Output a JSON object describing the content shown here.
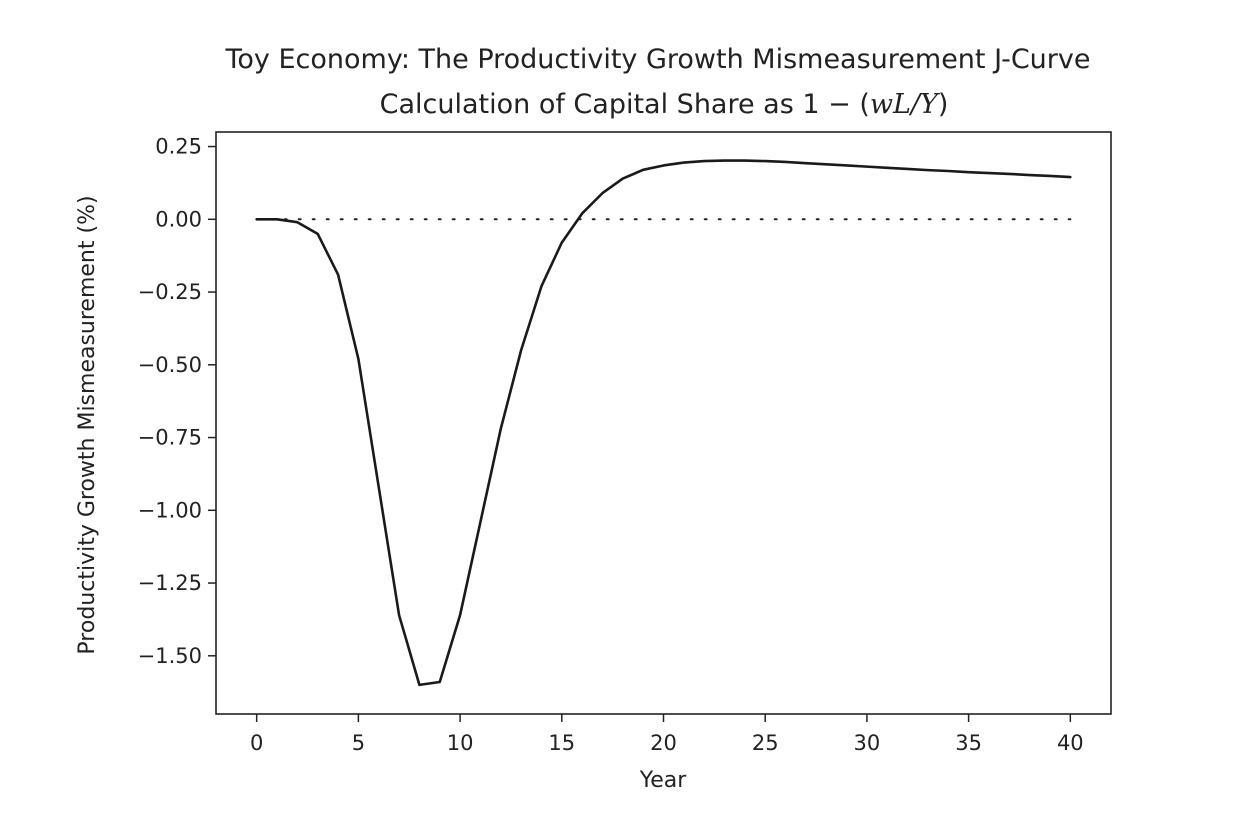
{
  "chart_data": {
    "type": "line",
    "title_line1": "Toy Economy: The Productivity Growth Mismeasurement J-Curve",
    "title_line2_prefix": "Calculation of Capital Share as 1 − (",
    "title_line2_math": "wL/Y",
    "title_line2_suffix": ")",
    "xlabel": "Year",
    "ylabel": "Productivity Growth Mismeasurement (%)",
    "xlim": [
      -2,
      42
    ],
    "ylim": [
      -1.7,
      0.3
    ],
    "x_ticks": [
      0,
      5,
      10,
      15,
      20,
      25,
      30,
      35,
      40
    ],
    "x_tick_labels": [
      "0",
      "5",
      "10",
      "15",
      "20",
      "25",
      "30",
      "35",
      "40"
    ],
    "y_ticks": [
      0.25,
      0.0,
      -0.25,
      -0.5,
      -0.75,
      -1.0,
      -1.25,
      -1.5
    ],
    "y_tick_labels": [
      "0.25",
      "0.00",
      "−0.25",
      "−0.50",
      "−0.75",
      "−1.00",
      "−1.25",
      "−1.50"
    ],
    "reference_line": {
      "y": 0,
      "x_range": [
        0,
        40
      ],
      "style": "dotted"
    },
    "series": [
      {
        "color": "#1a1a1a",
        "x": [
          0,
          1,
          2,
          3,
          4,
          5,
          6,
          7,
          8,
          9,
          10,
          11,
          12,
          13,
          14,
          15,
          16,
          17,
          18,
          19,
          20,
          21,
          22,
          23,
          24,
          25,
          26,
          27,
          28,
          29,
          30,
          31,
          32,
          33,
          34,
          35,
          36,
          37,
          38,
          39,
          40
        ],
        "y": [
          0.0,
          0.0,
          -0.01,
          -0.05,
          -0.19,
          -0.48,
          -0.92,
          -1.36,
          -1.6,
          -1.59,
          -1.36,
          -1.04,
          -0.72,
          -0.45,
          -0.23,
          -0.08,
          0.02,
          0.09,
          0.14,
          0.17,
          0.185,
          0.195,
          0.2,
          0.202,
          0.202,
          0.2,
          0.197,
          0.193,
          0.189,
          0.185,
          0.181,
          0.177,
          0.173,
          0.169,
          0.166,
          0.162,
          0.159,
          0.156,
          0.152,
          0.149,
          0.145
        ]
      }
    ]
  }
}
